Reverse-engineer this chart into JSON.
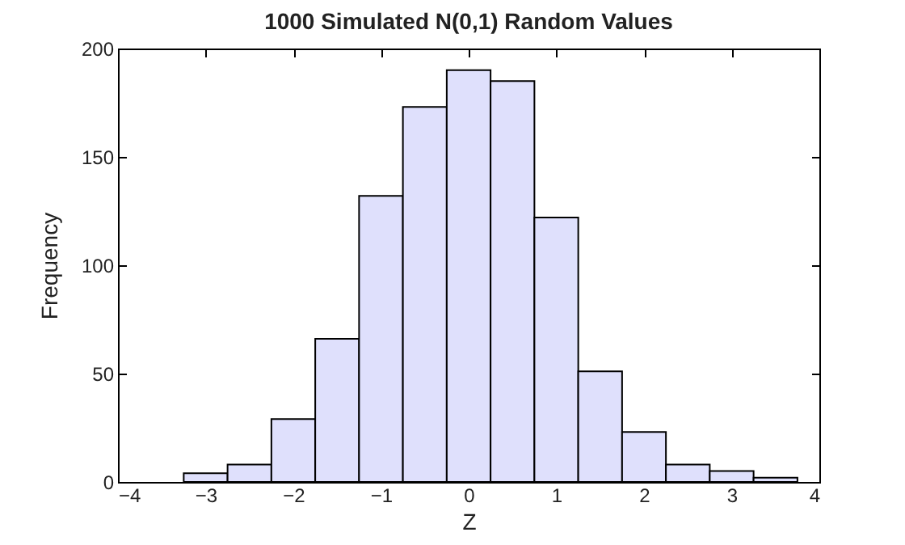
{
  "chart_data": {
    "type": "histogram",
    "title": "1000 Simulated N(0,1) Random Values",
    "xlabel": "Z",
    "ylabel": "Frequency",
    "bins": [
      -3.25,
      -2.75,
      -2.25,
      -1.75,
      -1.25,
      -0.75,
      -0.25,
      0.25,
      0.75,
      1.25,
      1.75,
      2.25,
      2.75,
      3.25,
      3.75
    ],
    "values": [
      4,
      8,
      29,
      66,
      132,
      173,
      190,
      185,
      122,
      51,
      23,
      8,
      5,
      2
    ],
    "color": "#dfe0fc",
    "xlim": [
      -4,
      4
    ],
    "xticks": [
      -4,
      -3,
      -2,
      -1,
      0,
      1,
      2,
      3,
      4
    ],
    "ylim": [
      0,
      200
    ],
    "yticks": [
      0,
      50,
      100,
      150,
      200
    ],
    "grid": false
  }
}
